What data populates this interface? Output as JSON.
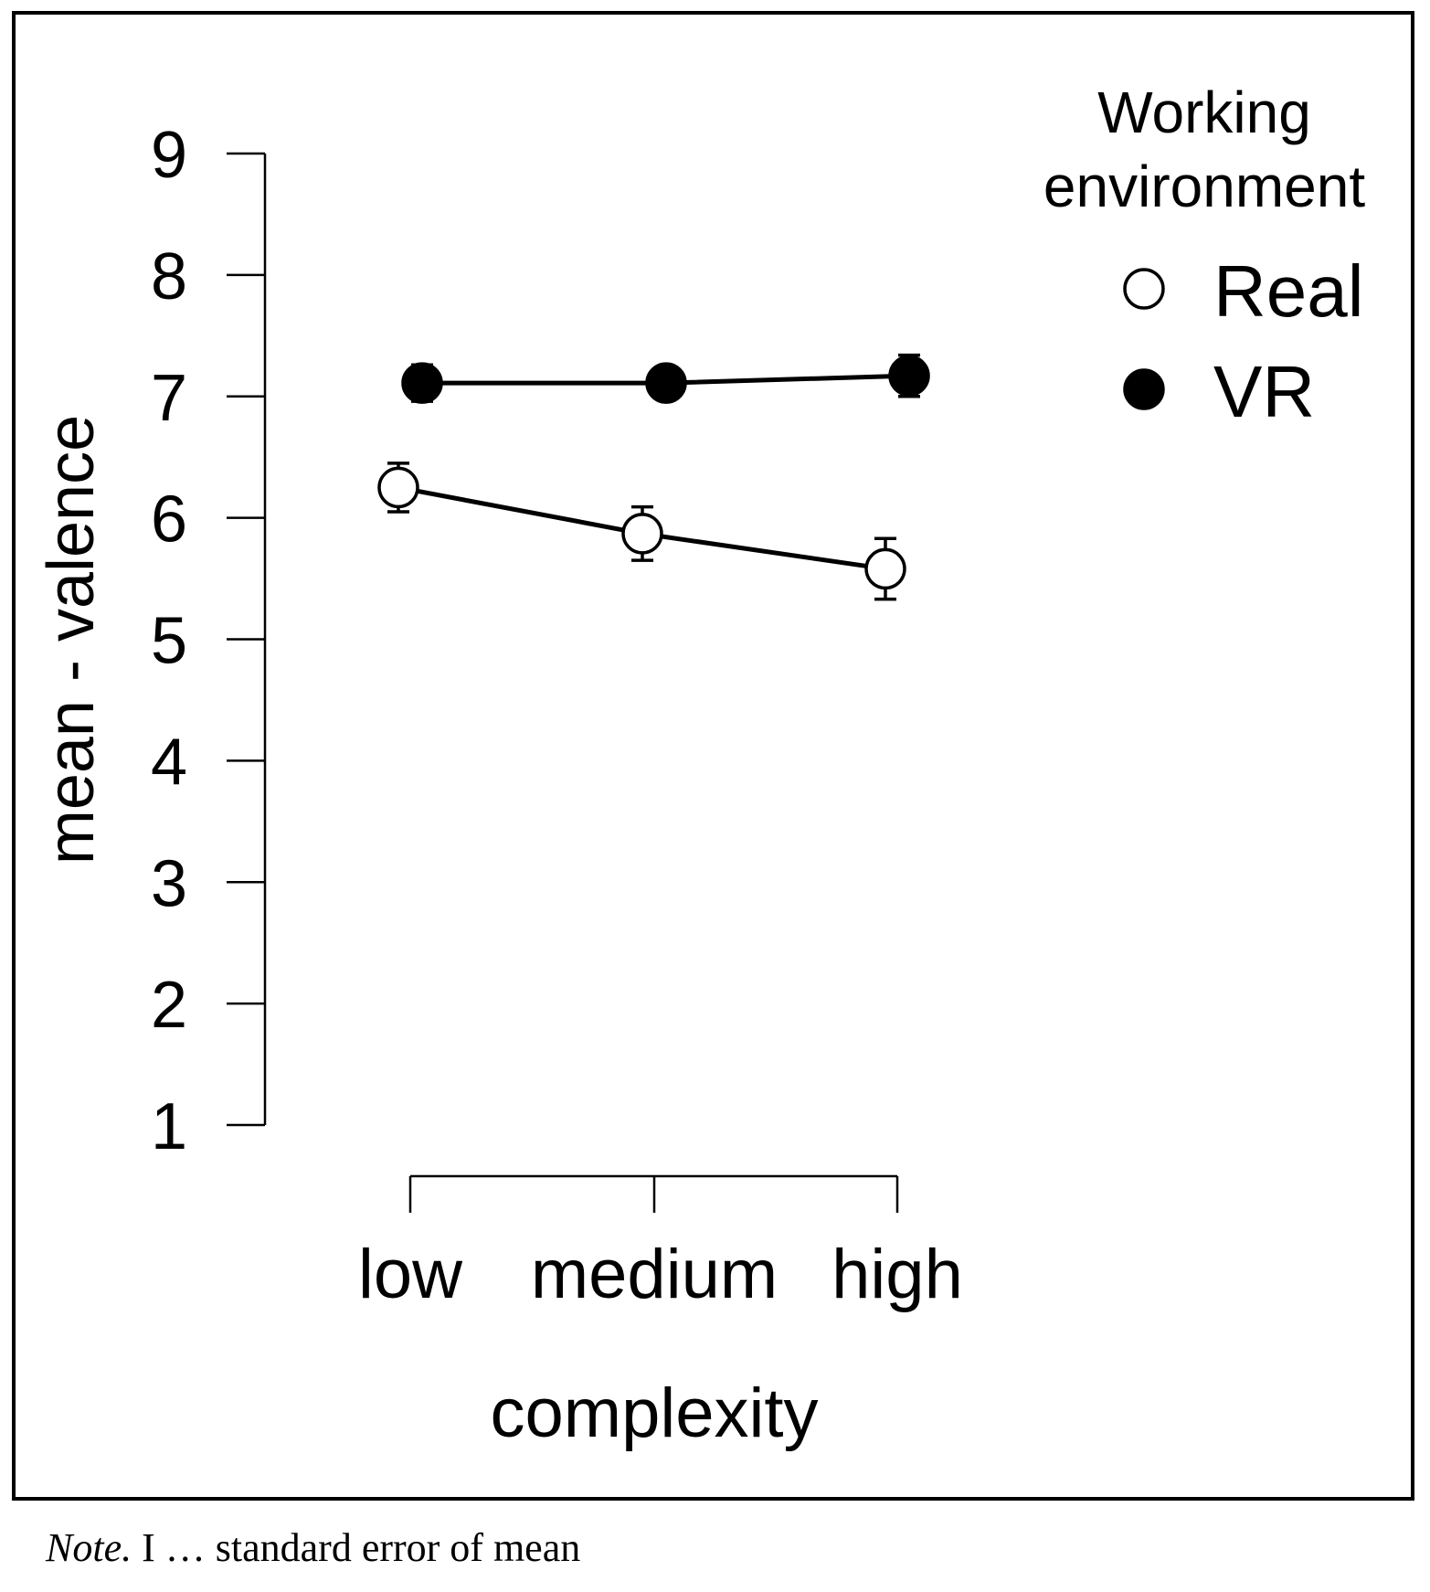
{
  "chart_data": {
    "type": "line",
    "categories": [
      "low",
      "medium",
      "high"
    ],
    "xlabel": "complexity",
    "ylabel": "mean - valence",
    "ylim": [
      1,
      9
    ],
    "yticks": [
      "1",
      "2",
      "3",
      "4",
      "5",
      "6",
      "7",
      "8",
      "9"
    ],
    "grid": false,
    "legend": {
      "title_line1": "Working",
      "title_line2": "environment",
      "placement": "top-right"
    },
    "series": [
      {
        "name": "Real",
        "marker": "open-circle",
        "values": [
          6.25,
          5.87,
          5.58
        ],
        "se": [
          0.2,
          0.22,
          0.25
        ]
      },
      {
        "name": "VR",
        "marker": "filled-circle",
        "values": [
          7.11,
          7.11,
          7.17
        ],
        "se": [
          0.15,
          0.12,
          0.17
        ]
      }
    ],
    "colors": {
      "ink": "#000000",
      "open_fill": "#ffffff"
    }
  },
  "note": {
    "label": "Note.",
    "text": " I … standard error of mean"
  }
}
